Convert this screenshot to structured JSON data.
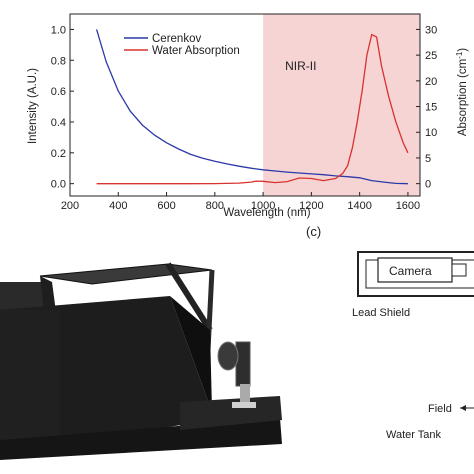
{
  "chart_data": {
    "type": "line",
    "xlabel": "Wavelength (nm)",
    "ylabel_left": "Intensity (A.U.)",
    "ylabel_right": "Absorption (cm",
    "ylabel_right_superscript": "-1",
    "ylabel_right_close": ")",
    "xlim": [
      200,
      1650
    ],
    "ylim_left": [
      -0.08,
      1.1
    ],
    "ylim_right": [
      -2.4,
      33
    ],
    "x_ticks": [
      "200",
      "400",
      "600",
      "800",
      "1000",
      "1200",
      "1400",
      "1600"
    ],
    "y_left_ticks": [
      "0.0",
      "0.2",
      "0.4",
      "0.6",
      "0.8",
      "1.0"
    ],
    "y_right_ticks": [
      "0",
      "5",
      "10",
      "15",
      "20",
      "25",
      "30"
    ],
    "shaded_region": {
      "label": "NIR-II",
      "x_range": [
        1000,
        1650
      ],
      "color": "#f7d4d4"
    },
    "legend_position": "top-left",
    "series": [
      {
        "name": "Cerenkov",
        "axis": "left",
        "color": "#2b3aa8",
        "x": [
          310,
          350,
          400,
          450,
          500,
          550,
          600,
          650,
          700,
          750,
          800,
          850,
          900,
          950,
          1000,
          1050,
          1100,
          1150,
          1200,
          1250,
          1300,
          1350,
          1400,
          1450,
          1500,
          1550,
          1600
        ],
        "y": [
          1.0,
          0.79,
          0.6,
          0.47,
          0.38,
          0.315,
          0.265,
          0.225,
          0.19,
          0.165,
          0.145,
          0.128,
          0.113,
          0.1,
          0.09,
          0.082,
          0.075,
          0.069,
          0.063,
          0.058,
          0.05,
          0.045,
          0.038,
          0.02,
          0.01,
          0.002,
          0.0
        ]
      },
      {
        "name": "Water Absorption",
        "axis": "right",
        "color": "#d8322e",
        "x": [
          310,
          400,
          500,
          600,
          700,
          800,
          900,
          950,
          970,
          1000,
          1050,
          1100,
          1150,
          1200,
          1250,
          1300,
          1330,
          1350,
          1370,
          1390,
          1410,
          1430,
          1450,
          1470,
          1490,
          1520,
          1550,
          1580,
          1600
        ],
        "y": [
          0,
          0,
          0,
          0,
          0,
          0.02,
          0.1,
          0.3,
          0.5,
          0.45,
          0.2,
          0.4,
          1.1,
          1.0,
          0.6,
          1.0,
          2.0,
          3.5,
          7,
          12,
          18,
          25,
          29,
          28.5,
          23,
          17,
          12,
          8,
          6
        ]
      }
    ]
  },
  "panel_label": "(c)",
  "photo_panel": {
    "description_icon": "dark-enclosure-photo"
  },
  "schematic": {
    "camera_label": "Camera",
    "lead_shield_label": "Lead Shield",
    "field_label": "Field",
    "water_tank_label": "Water Tank"
  }
}
